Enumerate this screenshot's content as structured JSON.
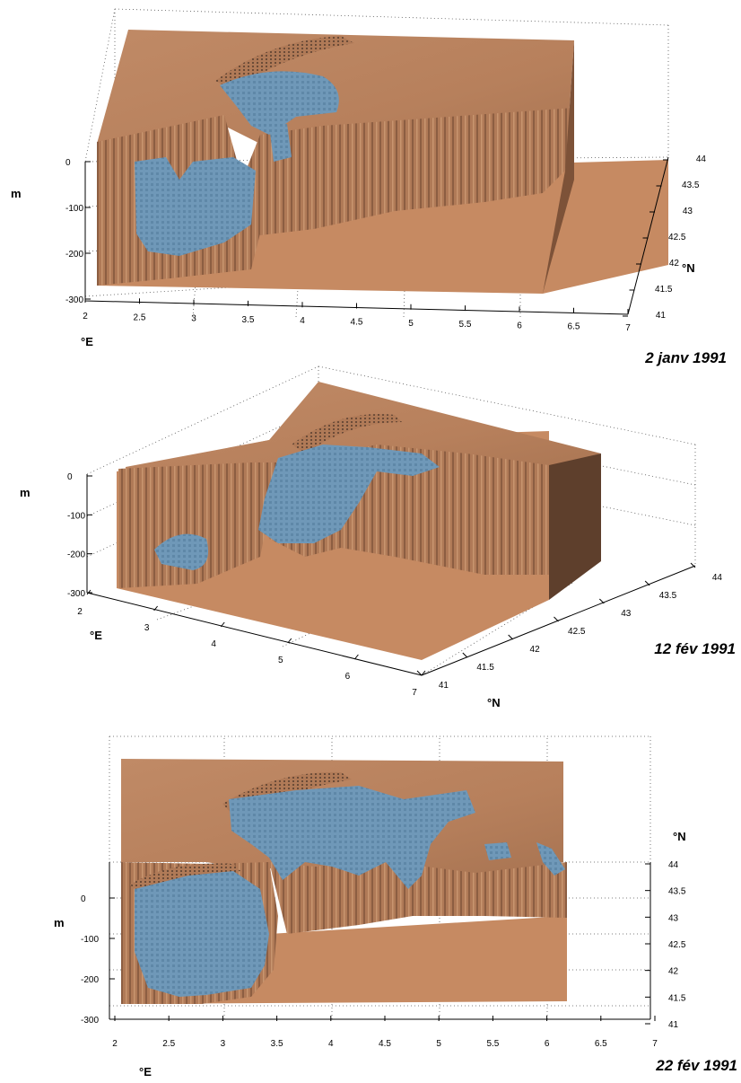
{
  "figure": {
    "panels": [
      {
        "date_label": "2 janv 1991"
      },
      {
        "date_label": "12 fév 1991"
      },
      {
        "date_label": "22 fév 1991"
      }
    ]
  },
  "colors": {
    "terrain": "#b8825f",
    "terrain_dark": "#7d5238",
    "terrain_floor": "#c68a62",
    "water_mass": "#6f98b8"
  },
  "chart_data": [
    {
      "type": "surface3d",
      "title": "2 janv 1991",
      "xlabel": "°E",
      "ylabel": "°N",
      "zlabel": "m",
      "xticks": [
        "2",
        "2.5",
        "3",
        "3.5",
        "4",
        "4.5",
        "5",
        "5.5",
        "6",
        "6.5",
        "7"
      ],
      "yticks": [
        "41",
        "41.5",
        "42",
        "42.5",
        "43",
        "43.5",
        "44"
      ],
      "zticks": [
        "0",
        "-100",
        "-200",
        "-300"
      ],
      "xlim": [
        2,
        7
      ],
      "ylim": [
        41,
        44
      ],
      "zlim": [
        -300,
        0
      ],
      "grid": true
    },
    {
      "type": "surface3d",
      "title": "12 fév 1991",
      "xlabel": "°E",
      "ylabel": "°N",
      "zlabel": "m",
      "xticks": [
        "2",
        "3",
        "4",
        "5",
        "6",
        "7"
      ],
      "yticks": [
        "41",
        "41.5",
        "42",
        "42.5",
        "43",
        "43.5",
        "44"
      ],
      "zticks": [
        "0",
        "-100",
        "-200",
        "-300"
      ],
      "xlim": [
        2,
        7
      ],
      "ylim": [
        41,
        44
      ],
      "zlim": [
        -300,
        0
      ],
      "grid": true
    },
    {
      "type": "surface3d",
      "title": "22 fév 1991",
      "xlabel": "°E",
      "ylabel": "°N",
      "zlabel": "m",
      "xticks": [
        "2",
        "2.5",
        "3",
        "3.5",
        "4",
        "4.5",
        "5",
        "5.5",
        "6",
        "6.5",
        "7"
      ],
      "yticks": [
        "41",
        "41.5",
        "42",
        "42.5",
        "43",
        "43.5",
        "44"
      ],
      "zticks": [
        "0",
        "-100",
        "-200",
        "-300"
      ],
      "xlim": [
        2,
        7
      ],
      "ylim": [
        41,
        44
      ],
      "zlim": [
        -300,
        0
      ],
      "grid": true
    }
  ]
}
